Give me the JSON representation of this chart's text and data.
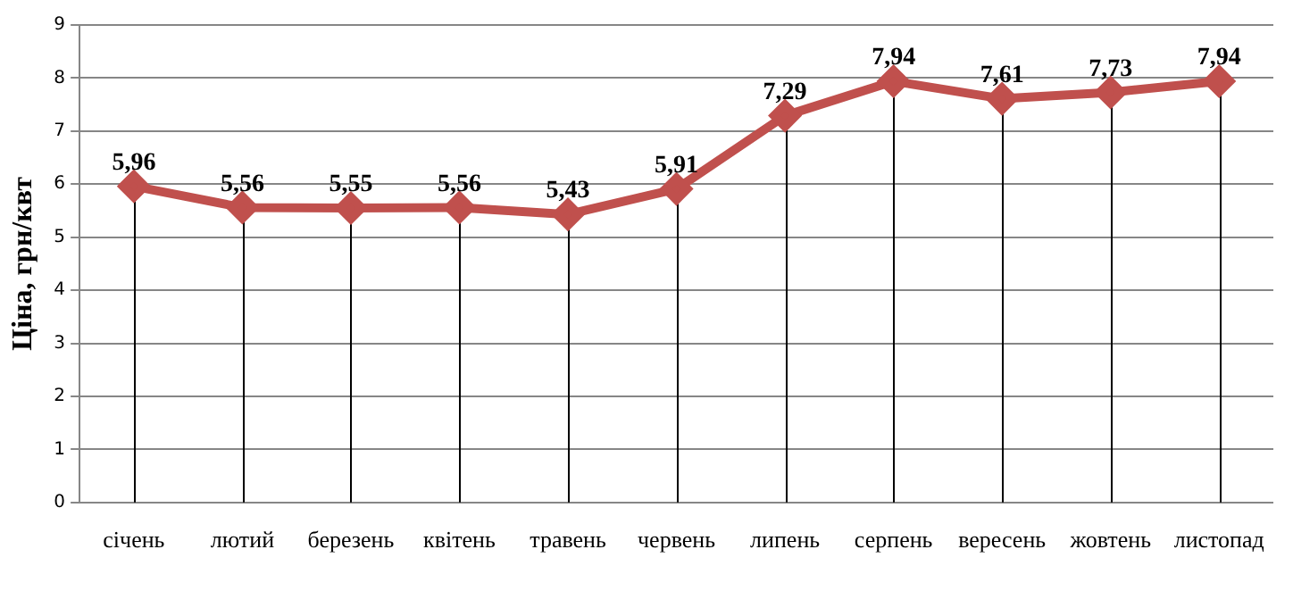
{
  "chart_data": {
    "type": "line",
    "ylabel": "Ціна, грн/квт",
    "categories": [
      "січень",
      "лютий",
      "березень",
      "квітень",
      "травень",
      "червень",
      "липень",
      "серпень",
      "вересень",
      "жовтень",
      "листопад"
    ],
    "series": [
      {
        "color": "#c0504d",
        "values": [
          5.96,
          5.56,
          5.55,
          5.56,
          5.43,
          5.91,
          7.29,
          7.94,
          7.61,
          7.73,
          7.94
        ],
        "value_labels": [
          "5,96",
          "5,56",
          "5,55",
          "5,56",
          "5,43",
          "5,91",
          "7,29",
          "7,94",
          "7,61",
          "7,73",
          "7,94"
        ]
      }
    ],
    "ylim": [
      0,
      9
    ],
    "yticks": [
      0,
      1,
      2,
      3,
      4,
      5,
      6,
      7,
      8,
      9
    ],
    "grid": true,
    "legend": false,
    "marker": "diamond",
    "line_style": "solid"
  }
}
